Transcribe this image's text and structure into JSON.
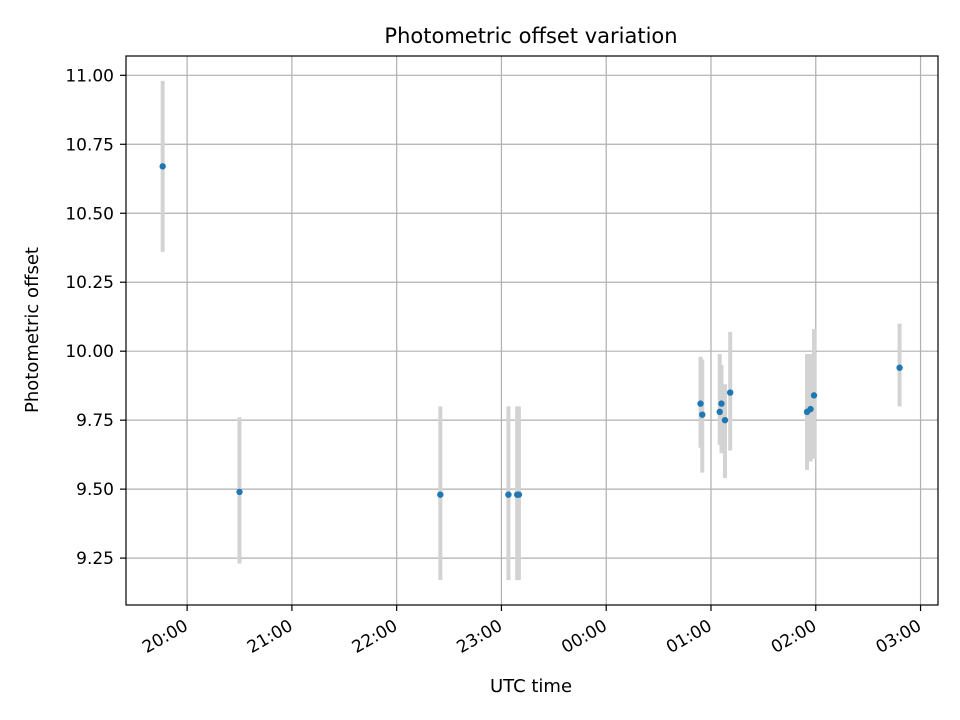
{
  "chart_data": {
    "type": "scatter",
    "title": "Photometric offset variation",
    "xlabel": "UTC time",
    "ylabel": "Photometric offset",
    "x_ticks": [
      "20:00",
      "21:00",
      "22:00",
      "23:00",
      "00:00",
      "01:00",
      "02:00",
      "03:00"
    ],
    "y_ticks": [
      "9.25",
      "9.50",
      "9.75",
      "10.00",
      "10.25",
      "10.50",
      "10.75",
      "11.00"
    ],
    "xlim": [
      "19:25",
      "03:10"
    ],
    "ylim": [
      9.08,
      11.07
    ],
    "grid": true,
    "points": [
      {
        "time": "19:46",
        "offset": 10.67,
        "err_low": 10.36,
        "err_high": 10.98
      },
      {
        "time": "20:30",
        "offset": 9.49,
        "err_low": 9.23,
        "err_high": 9.76
      },
      {
        "time": "22:25",
        "offset": 9.48,
        "err_low": 9.17,
        "err_high": 9.8
      },
      {
        "time": "23:04",
        "offset": 9.48,
        "err_low": 9.17,
        "err_high": 9.8
      },
      {
        "time": "23:09",
        "offset": 9.48,
        "err_low": 9.17,
        "err_high": 9.8
      },
      {
        "time": "23:10",
        "offset": 9.48,
        "err_low": 9.17,
        "err_high": 9.8
      },
      {
        "time": "00:54",
        "offset": 9.81,
        "err_low": 9.65,
        "err_high": 9.98
      },
      {
        "time": "00:55",
        "offset": 9.77,
        "err_low": 9.56,
        "err_high": 9.97
      },
      {
        "time": "01:05",
        "offset": 9.78,
        "err_low": 9.66,
        "err_high": 9.99
      },
      {
        "time": "01:06",
        "offset": 9.81,
        "err_low": 9.63,
        "err_high": 9.95
      },
      {
        "time": "01:08",
        "offset": 9.75,
        "err_low": 9.54,
        "err_high": 9.88
      },
      {
        "time": "01:11",
        "offset": 9.85,
        "err_low": 9.64,
        "err_high": 10.07
      },
      {
        "time": "01:55",
        "offset": 9.78,
        "err_low": 9.57,
        "err_high": 9.99
      },
      {
        "time": "01:57",
        "offset": 9.79,
        "err_low": 9.6,
        "err_high": 9.99
      },
      {
        "time": "01:59",
        "offset": 9.84,
        "err_low": 9.61,
        "err_high": 10.08
      },
      {
        "time": "02:48",
        "offset": 9.94,
        "err_low": 9.8,
        "err_high": 10.1
      }
    ],
    "colors": {
      "marker": "#1f77b4",
      "errorbar": "#d3d3d3",
      "grid": "#b0b0b0",
      "axis": "#000000"
    }
  }
}
